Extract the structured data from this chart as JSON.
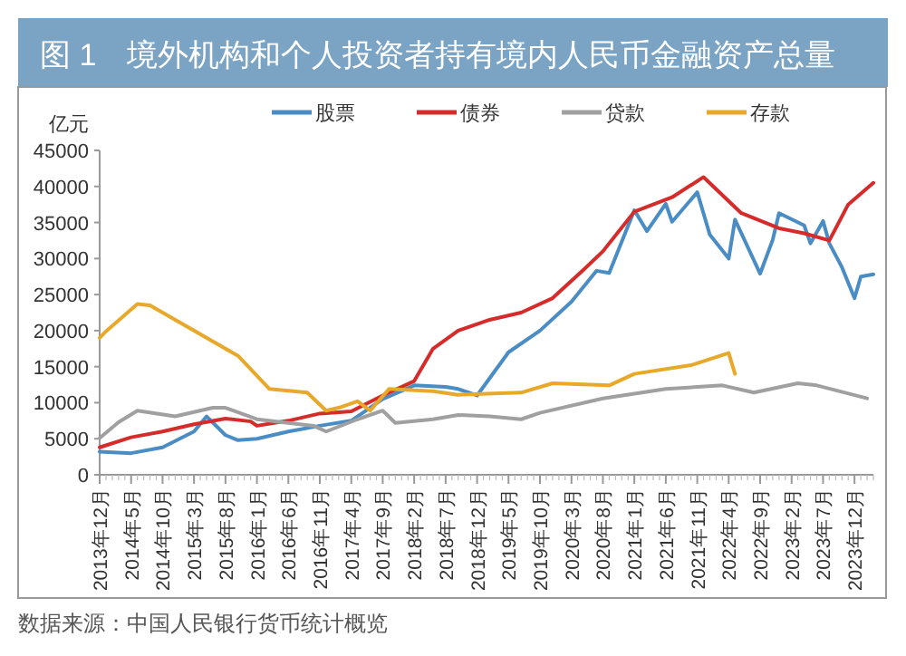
{
  "chart_data": {
    "type": "line",
    "title": "图 1　境外机构和个人投资者持有境内人民币金融资产总量",
    "ylabel": "亿元",
    "annotations": [
      "数据来源：中国人民银行货币统计概览"
    ],
    "legend": "top",
    "xlim": [
      "2013-12",
      "2024-03"
    ],
    "xticks": [
      {
        "value": "2013-12",
        "label": "2013年12月"
      },
      {
        "value": "2014-05",
        "label": "2014年5月"
      },
      {
        "value": "2014-10",
        "label": "2014年10月"
      },
      {
        "value": "2015-03",
        "label": "2015年3月"
      },
      {
        "value": "2015-08",
        "label": "2015年8月"
      },
      {
        "value": "2016-01",
        "label": "2016年1月"
      },
      {
        "value": "2016-06",
        "label": "2016年6月"
      },
      {
        "value": "2016-11",
        "label": "2016年11月"
      },
      {
        "value": "2017-04",
        "label": "2017年4月"
      },
      {
        "value": "2017-09",
        "label": "2017年9月"
      },
      {
        "value": "2018-02",
        "label": "2018年2月"
      },
      {
        "value": "2018-07",
        "label": "2018年7月"
      },
      {
        "value": "2018-12",
        "label": "2018年12月"
      },
      {
        "value": "2019-05",
        "label": "2019年5月"
      },
      {
        "value": "2019-10",
        "label": "2019年10月"
      },
      {
        "value": "2020-03",
        "label": "2020年3月"
      },
      {
        "value": "2020-08",
        "label": "2020年8月"
      },
      {
        "value": "2021-01",
        "label": "2021年1月"
      },
      {
        "value": "2021-06",
        "label": "2021年6月"
      },
      {
        "value": "2021-11",
        "label": "2021年11月"
      },
      {
        "value": "2022-04",
        "label": "2022年4月"
      },
      {
        "value": "2022-09",
        "label": "2022年9月"
      },
      {
        "value": "2023-02",
        "label": "2023年2月"
      },
      {
        "value": "2023-07",
        "label": "2023年7月"
      },
      {
        "value": "2023-12",
        "label": "2023年12月"
      }
    ],
    "ylim": [
      0,
      45000
    ],
    "yticks": [
      0,
      5000,
      10000,
      15000,
      20000,
      25000,
      30000,
      35000,
      40000,
      45000
    ],
    "series": [
      {
        "name": "股票",
        "color": "#4a8cc4",
        "x": [
          "2013-12",
          "2014-05",
          "2014-10",
          "2015-03",
          "2015-05",
          "2015-08",
          "2015-10",
          "2016-01",
          "2016-06",
          "2016-11",
          "2017-04",
          "2017-09",
          "2018-02",
          "2018-07",
          "2018-09",
          "2018-12",
          "2019-05",
          "2019-10",
          "2020-03",
          "2020-07",
          "2020-09",
          "2021-01",
          "2021-03",
          "2021-06",
          "2021-07",
          "2021-11",
          "2022-01",
          "2022-04",
          "2022-05",
          "2022-09",
          "2022-11",
          "2022-12",
          "2023-04",
          "2023-05",
          "2023-07",
          "2023-08",
          "2023-10",
          "2023-12",
          "2024-01",
          "2024-03"
        ],
        "values": [
          3200,
          3000,
          3800,
          6000,
          8100,
          5500,
          4800,
          5000,
          6000,
          6800,
          7500,
          10500,
          12400,
          12200,
          11900,
          11000,
          17000,
          20000,
          24000,
          28300,
          28000,
          36700,
          33800,
          37600,
          35100,
          39200,
          33300,
          30000,
          35400,
          27900,
          32600,
          36300,
          34600,
          32100,
          35200,
          32100,
          28800,
          24500,
          27500,
          27800
        ]
      },
      {
        "name": "债券",
        "color": "#d62b2b",
        "x": [
          "2013-12",
          "2014-05",
          "2014-10",
          "2015-03",
          "2015-08",
          "2015-12",
          "2016-01",
          "2016-06",
          "2016-11",
          "2017-04",
          "2017-09",
          "2018-02",
          "2018-05",
          "2018-09",
          "2019-02",
          "2019-07",
          "2019-12",
          "2020-05",
          "2020-08",
          "2021-01",
          "2021-07",
          "2021-12",
          "2022-06",
          "2022-12",
          "2023-04",
          "2023-08",
          "2023-11",
          "2024-03"
        ],
        "values": [
          3800,
          5200,
          6000,
          7000,
          7800,
          7400,
          6800,
          7500,
          8500,
          8800,
          11000,
          13000,
          17500,
          20000,
          21500,
          22500,
          24500,
          28500,
          31000,
          36500,
          38500,
          41300,
          36300,
          34200,
          33500,
          32500,
          37500,
          40500
        ]
      },
      {
        "name": "贷款",
        "color": "#a0a0a0",
        "x": [
          "2013-12",
          "2014-03",
          "2014-06",
          "2014-12",
          "2015-06",
          "2015-08",
          "2016-01",
          "2016-10",
          "2016-12",
          "2017-05",
          "2017-09",
          "2017-11",
          "2018-05",
          "2018-09",
          "2019-02",
          "2019-07",
          "2019-10",
          "2020-08",
          "2021-06",
          "2022-03",
          "2022-08",
          "2023-03",
          "2023-06",
          "2024-02"
        ],
        "values": [
          5100,
          7300,
          8900,
          8100,
          9300,
          9300,
          7700,
          6800,
          6000,
          7700,
          8900,
          7200,
          7700,
          8300,
          8100,
          7700,
          8600,
          10600,
          11900,
          12400,
          11400,
          12700,
          12400,
          10600
        ]
      },
      {
        "name": "存款",
        "color": "#e8a82a",
        "x": [
          "2013-12",
          "2014-01",
          "2014-06",
          "2014-08",
          "2015-10",
          "2016-03",
          "2016-09",
          "2016-12",
          "2017-02",
          "2017-05",
          "2017-07",
          "2017-10",
          "2018-05",
          "2018-09",
          "2019-07",
          "2019-12",
          "2020-09",
          "2021-01",
          "2021-10",
          "2022-04",
          "2022-05"
        ],
        "values": [
          19000,
          19900,
          23700,
          23500,
          16500,
          11900,
          11400,
          8900,
          9300,
          10200,
          8900,
          11900,
          11600,
          11100,
          11400,
          12700,
          12400,
          14000,
          15200,
          16900,
          14000
        ]
      }
    ]
  }
}
